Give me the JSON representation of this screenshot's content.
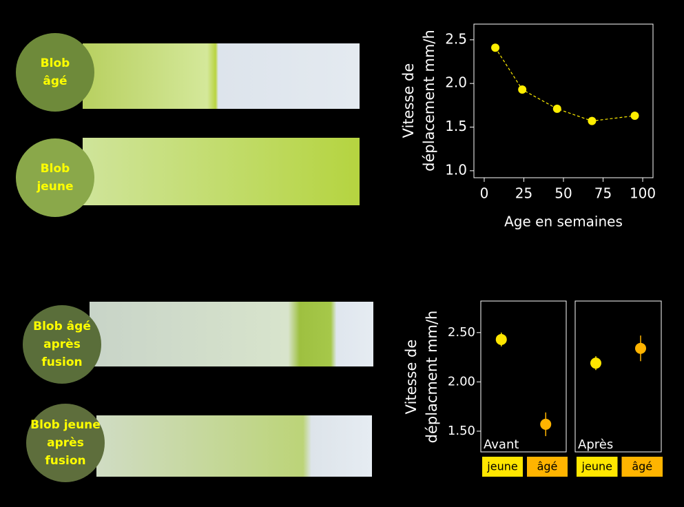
{
  "strips": [
    {
      "lines": [
        "Blob",
        "âgé"
      ]
    },
    {
      "lines": [
        "Blob",
        "jeune"
      ]
    },
    {
      "lines": [
        "Blob âgé",
        "après",
        "fusion"
      ]
    },
    {
      "lines": [
        "Blob jeune",
        "après",
        "fusion"
      ]
    }
  ],
  "chart_data": [
    {
      "type": "line",
      "y_label": [
        "Vitesse de",
        "déplacement mm/h"
      ],
      "x_label": "Age en semaines",
      "x": [
        7,
        24,
        46,
        68,
        95
      ],
      "values": [
        2.41,
        1.93,
        1.71,
        1.57,
        1.63
      ],
      "color": "#ffee00",
      "xlim": [
        -6.5,
        106.5
      ],
      "xticks": [
        0,
        25,
        50,
        75,
        100
      ],
      "ylim": [
        0.92,
        2.68
      ],
      "yticks": [
        {
          "value": 1,
          "label": "1.0"
        },
        1.5,
        {
          "value": 2,
          "label": "2.0"
        },
        2.5
      ]
    },
    {
      "type": "dot-error",
      "y_label": [
        "Vitesse de",
        "déplacment mm/h"
      ],
      "categories": [
        "jeune",
        "âgé"
      ],
      "colors": [
        "#ffe600",
        "#ffb400"
      ],
      "series": [
        {
          "name": "Avant",
          "values": [
            2.43,
            1.57
          ],
          "errors": [
            0.07,
            0.12
          ]
        },
        {
          "name": "Après",
          "values": [
            2.19,
            2.34
          ],
          "errors": [
            0.07,
            0.13
          ]
        }
      ],
      "ylim": [
        1.29,
        2.82
      ],
      "yticks": [
        {
          "value": 1.5,
          "label": "1.50"
        },
        {
          "value": 2,
          "label": "2.00"
        },
        {
          "value": 2.5,
          "label": "2.50"
        }
      ]
    }
  ]
}
